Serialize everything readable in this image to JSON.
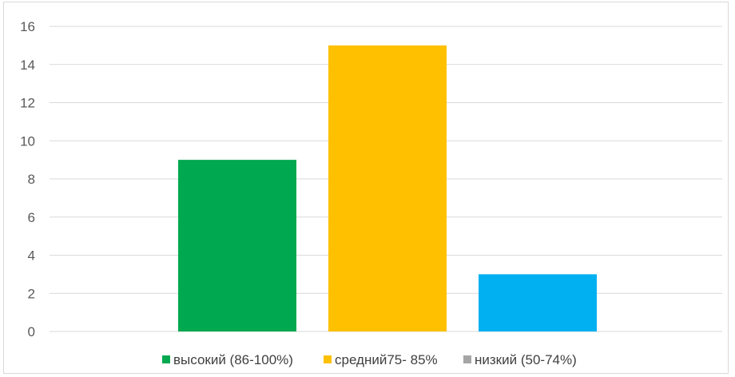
{
  "chart_data": {
    "type": "bar",
    "title": "",
    "xlabel": "",
    "ylabel": "",
    "ylim": [
      0,
      16
    ],
    "ytick_step": 2,
    "yticks": [
      "0",
      "2",
      "4",
      "6",
      "8",
      "10",
      "12",
      "14",
      "16"
    ],
    "grid": true,
    "legend_position": "bottom",
    "series": [
      {
        "name": "высокий (86-100%)",
        "value": 9,
        "color": "#00a84f"
      },
      {
        "name": "средний75- 85%",
        "value": 15,
        "color": "#ffc000"
      },
      {
        "name": "низкий (50-74%)",
        "value": 3,
        "color": "#00b0f0",
        "legend_color": "#a5a5a5"
      }
    ]
  }
}
